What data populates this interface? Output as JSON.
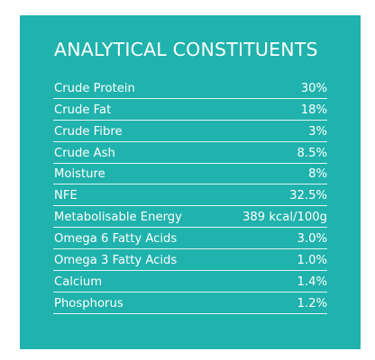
{
  "title": "ANALYTICAL CONSTITUENTS",
  "rows": [
    {
      "label": "Crude Protein",
      "value": "30%"
    },
    {
      "label": "Crude Fat",
      "value": "18%"
    },
    {
      "label": "Crude Fibre",
      "value": "3%"
    },
    {
      "label": "Crude Ash",
      "value": "8.5%"
    },
    {
      "label": "Moisture",
      "value": "8%"
    },
    {
      "label": "NFE",
      "value": "32.5%"
    },
    {
      "label": "Metabolisable Energy",
      "value": "389 kcal/100g"
    },
    {
      "label": "Omega 6 Fatty Acids",
      "value": "3.0%"
    },
    {
      "label": "Omega 3 Fatty Acids",
      "value": "1.0%"
    },
    {
      "label": "Calcium",
      "value": "1.4%"
    },
    {
      "label": "Phosphorus",
      "value": "1.2%"
    }
  ],
  "colors": {
    "panel_background": "#20b2ad",
    "text": "#ffffff"
  }
}
